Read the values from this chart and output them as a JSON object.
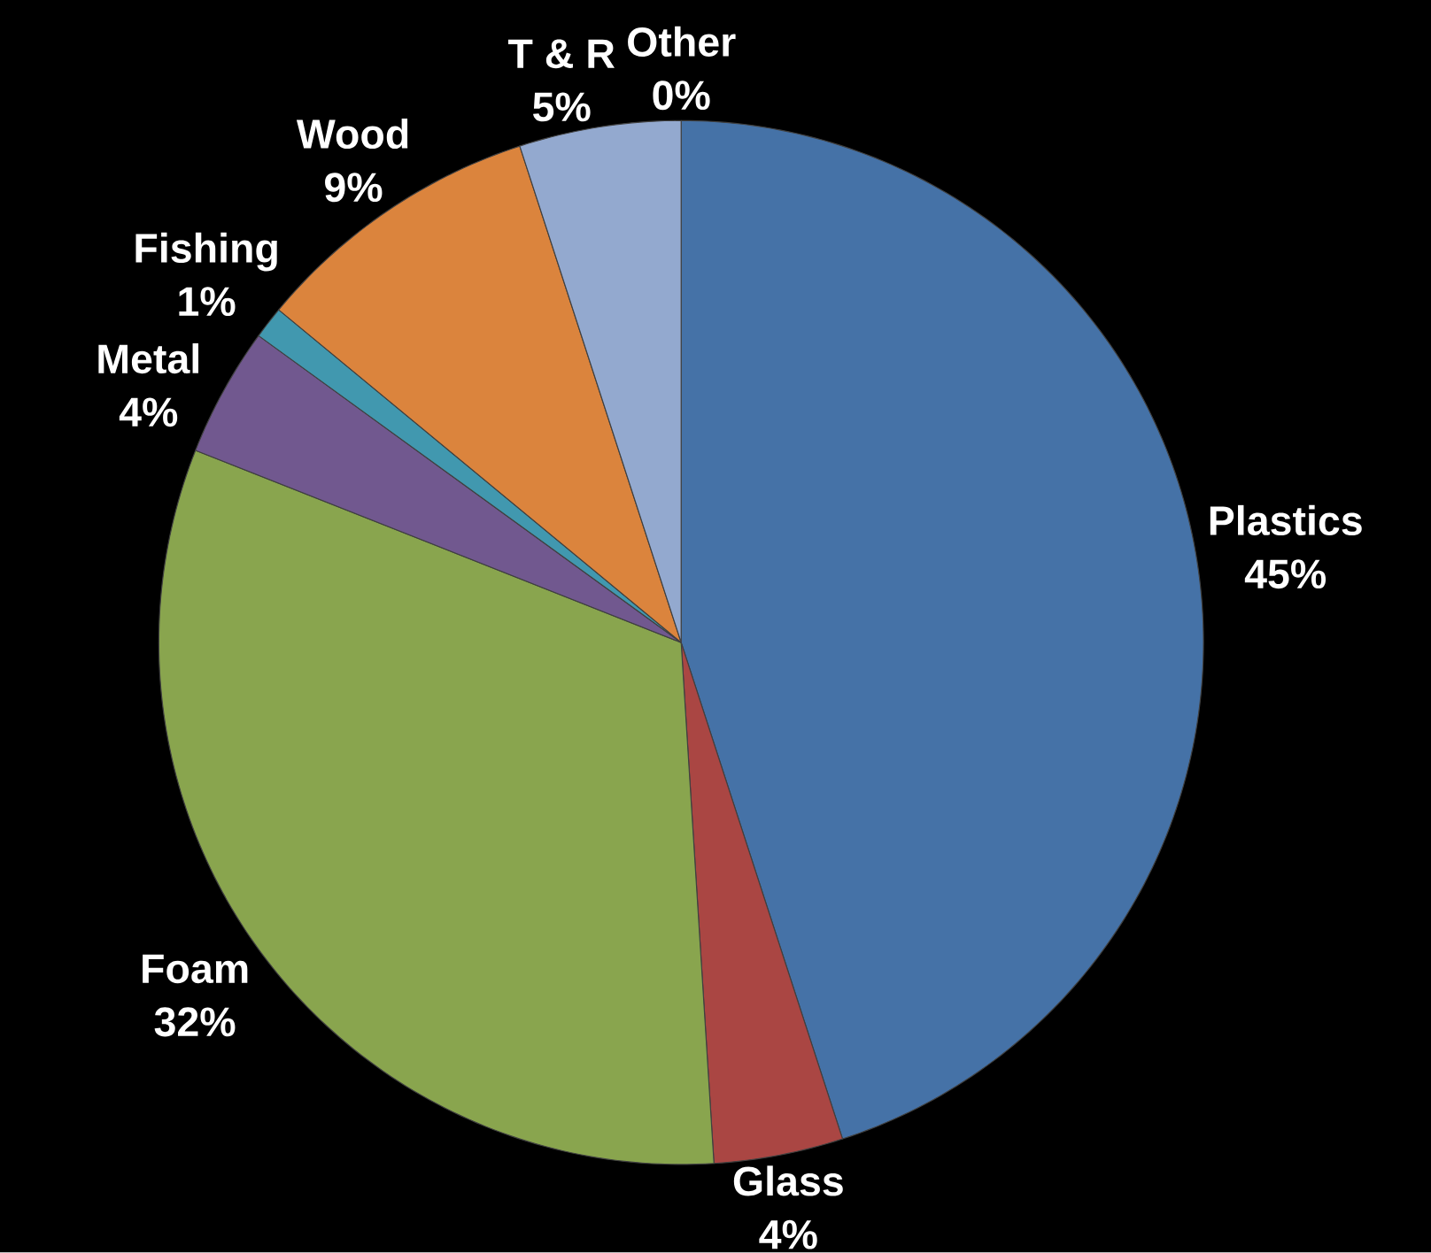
{
  "chart_data": {
    "type": "pie",
    "categories": [
      "Plastics",
      "Glass",
      "Foam",
      "Metal",
      "Fishing",
      "Wood",
      "T & R",
      "Other"
    ],
    "values": [
      45,
      4,
      32,
      4,
      1,
      9,
      5,
      0
    ],
    "colors": [
      "#4572a7",
      "#aa4643",
      "#89a54e",
      "#71588f",
      "#4198af",
      "#db843d",
      "#93a9cf",
      "#d19392"
    ],
    "value_labels": [
      "45%",
      "4%",
      "32%",
      "4%",
      "1%",
      "9%",
      "5%",
      "0%"
    ]
  }
}
